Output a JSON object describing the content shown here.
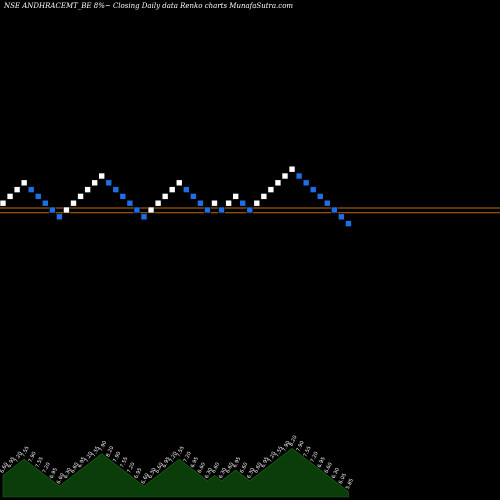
{
  "header": {
    "title": "NSE ANDHRACEMT_BE 8%~  Closing Daily data  Renko  charts MunafaSutra.com"
  },
  "colors": {
    "background": "#000000",
    "up_brick": "#ffffff",
    "down_brick": "#1e6fe6",
    "ref_line": "#c06a10",
    "volume_fill": "#0b3d0b"
  },
  "chart_data": {
    "type": "renko",
    "title": "NSE ANDHRACEMT_BE 8%~  Closing Daily data  Renko  charts MunafaSutra.com",
    "bricks": [
      {
        "d": "up",
        "level": 1
      },
      {
        "d": "up",
        "level": 2
      },
      {
        "d": "up",
        "level": 3
      },
      {
        "d": "up",
        "level": 4
      },
      {
        "d": "down",
        "level": 3
      },
      {
        "d": "down",
        "level": 2
      },
      {
        "d": "down",
        "level": 1
      },
      {
        "d": "down",
        "level": 0
      },
      {
        "d": "down",
        "level": -1
      },
      {
        "d": "up",
        "level": 0
      },
      {
        "d": "up",
        "level": 1
      },
      {
        "d": "up",
        "level": 2
      },
      {
        "d": "up",
        "level": 3
      },
      {
        "d": "up",
        "level": 4
      },
      {
        "d": "up",
        "level": 5
      },
      {
        "d": "down",
        "level": 4
      },
      {
        "d": "down",
        "level": 3
      },
      {
        "d": "down",
        "level": 2
      },
      {
        "d": "down",
        "level": 1
      },
      {
        "d": "down",
        "level": 0
      },
      {
        "d": "down",
        "level": -1
      },
      {
        "d": "up",
        "level": 0
      },
      {
        "d": "up",
        "level": 1
      },
      {
        "d": "up",
        "level": 2
      },
      {
        "d": "up",
        "level": 3
      },
      {
        "d": "up",
        "level": 4
      },
      {
        "d": "down",
        "level": 3
      },
      {
        "d": "down",
        "level": 2
      },
      {
        "d": "down",
        "level": 1
      },
      {
        "d": "down",
        "level": 0
      },
      {
        "d": "up",
        "level": 1
      },
      {
        "d": "down",
        "level": 0
      },
      {
        "d": "up",
        "level": 1
      },
      {
        "d": "up",
        "level": 2
      },
      {
        "d": "down",
        "level": 1
      },
      {
        "d": "down",
        "level": 0
      },
      {
        "d": "up",
        "level": 1
      },
      {
        "d": "up",
        "level": 2
      },
      {
        "d": "up",
        "level": 3
      },
      {
        "d": "up",
        "level": 4
      },
      {
        "d": "up",
        "level": 5
      },
      {
        "d": "up",
        "level": 6
      },
      {
        "d": "down",
        "level": 5
      },
      {
        "d": "down",
        "level": 4
      },
      {
        "d": "down",
        "level": 3
      },
      {
        "d": "down",
        "level": 2
      },
      {
        "d": "down",
        "level": 1
      },
      {
        "d": "down",
        "level": 0
      },
      {
        "d": "down",
        "level": -1
      },
      {
        "d": "down",
        "level": -2
      }
    ],
    "reference_lines": [
      {
        "name": "line-1",
        "level": 0.3
      },
      {
        "name": "line-2",
        "level": -0.4
      }
    ],
    "bottom_labels": [
      "6.60",
      "6.95",
      "7.20",
      "7.55",
      "7.90",
      "7.55",
      "7.20",
      "6.95",
      "6.60",
      "6.30",
      "6.60",
      "6.95",
      "7.20",
      "7.55",
      "7.90",
      "8.20",
      "7.90",
      "7.55",
      "7.20",
      "6.95",
      "6.60",
      "6.30",
      "6.60",
      "6.95",
      "7.20",
      "7.55",
      "7.20",
      "6.95",
      "6.60",
      "6.30",
      "6.60",
      "6.30",
      "6.60",
      "6.95",
      "6.60",
      "6.30",
      "6.60",
      "6.95",
      "7.20",
      "7.55",
      "7.90",
      "8.20",
      "7.90",
      "7.55",
      "7.20",
      "6.95",
      "6.60",
      "6.30",
      "6.05",
      "5.85"
    ]
  }
}
